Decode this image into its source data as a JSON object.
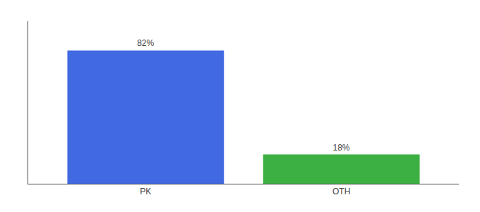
{
  "chart_data": {
    "type": "bar",
    "categories": [
      "PK",
      "OTH"
    ],
    "values": [
      82,
      18
    ],
    "value_labels": [
      "82%",
      "18%"
    ],
    "colors": [
      "#4169e1",
      "#3cb043"
    ],
    "ylim": [
      0,
      100
    ],
    "yticks": [],
    "tick_labels": "x",
    "data_labels": true,
    "grid": false
  }
}
